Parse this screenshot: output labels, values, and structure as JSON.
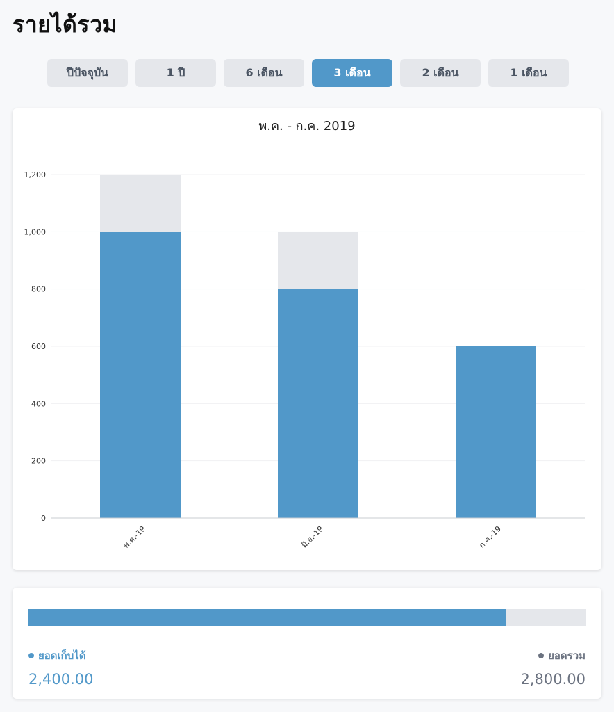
{
  "page": {
    "title": "รายได้รวม"
  },
  "tabs": [
    {
      "label": "ปีปัจจุบัน",
      "active": false
    },
    {
      "label": "1 ปี",
      "active": false
    },
    {
      "label": "6 เดือน",
      "active": false
    },
    {
      "label": "3 เดือน",
      "active": true
    },
    {
      "label": "2 เดือน",
      "active": false
    },
    {
      "label": "1 เดือน",
      "active": false
    }
  ],
  "colors": {
    "collected": "#5198c9",
    "total": "#e5e7eb",
    "total_text": "#6b7280"
  },
  "chart_data": {
    "type": "bar",
    "title": "พ.ค. - ก.ค. 2019",
    "categories": [
      "พ.ค.-19",
      "มิ.ย.-19",
      "ก.ค.-19"
    ],
    "series": [
      {
        "values": [
          1000,
          800,
          600
        ]
      },
      {
        "values": [
          1200,
          1000,
          600
        ]
      }
    ],
    "yticks": [
      "0",
      "200",
      "400",
      "600",
      "800",
      "1,000",
      "1,200"
    ],
    "ylim": [
      0,
      1200
    ],
    "grid": true,
    "stacking": "overlay"
  },
  "summary": {
    "collected_label": "ยอดเก็บได้",
    "collected_value": "2,400.00",
    "total_label": "ยอดรวม",
    "total_value": "2,800.00",
    "progress_fraction": 0.857
  }
}
